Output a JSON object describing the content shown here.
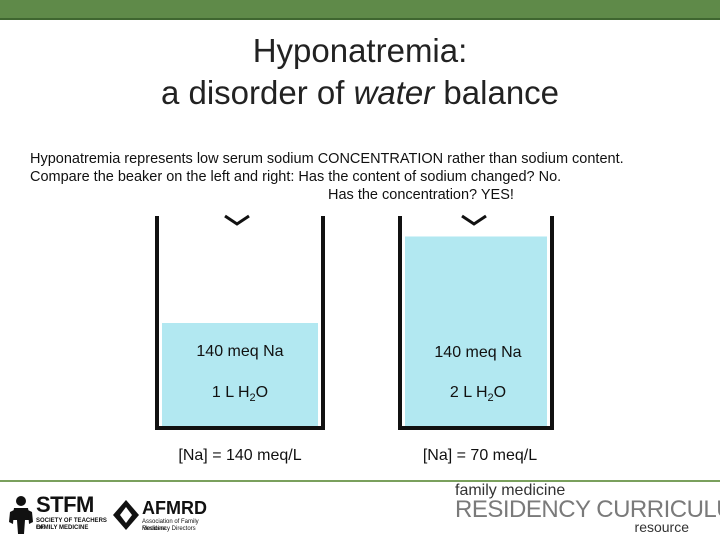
{
  "title": {
    "line1": "Hyponatremia:",
    "line2_prefix": "a disorder of ",
    "line2_emph": "water",
    "line2_suffix": " balance"
  },
  "intro": {
    "line1": "Hyponatremia represents low serum sodium CONCENTRATION rather than sodium content.",
    "line2": "Compare the beaker on the left and right:  Has the content of sodium changed? No.",
    "line3": "Has the concentration? YES!"
  },
  "beakers": [
    {
      "sodium": "140 meq Na",
      "water_prefix": "1 L H",
      "water_sub": "2",
      "water_suffix": "O",
      "concentration": "[Na] = 140 meq/L",
      "fill_fraction": 0.5
    },
    {
      "sodium": "140 meq Na",
      "water_prefix": "2 L H",
      "water_sub": "2",
      "water_suffix": "O",
      "concentration": "[Na] = 70 meq/L",
      "fill_fraction": 0.92
    }
  ],
  "colors": {
    "water": "#b2e8f1",
    "header_bar": "#5f8a49",
    "beaker_outline": "#111111"
  },
  "footer": {
    "stfm": {
      "name": "STFM",
      "subtitle1": "SOCIETY OF TEACHERS OF",
      "subtitle2": "FAMILY MEDICINE"
    },
    "afmrd": {
      "name": "AFMRD",
      "subtitle1": "Association of Family Medicine",
      "subtitle2": "Residency Directors"
    },
    "curriculum": {
      "line1": "family medicine",
      "line2": "RESIDENCY CURRICULUM",
      "line3": "resource"
    }
  }
}
